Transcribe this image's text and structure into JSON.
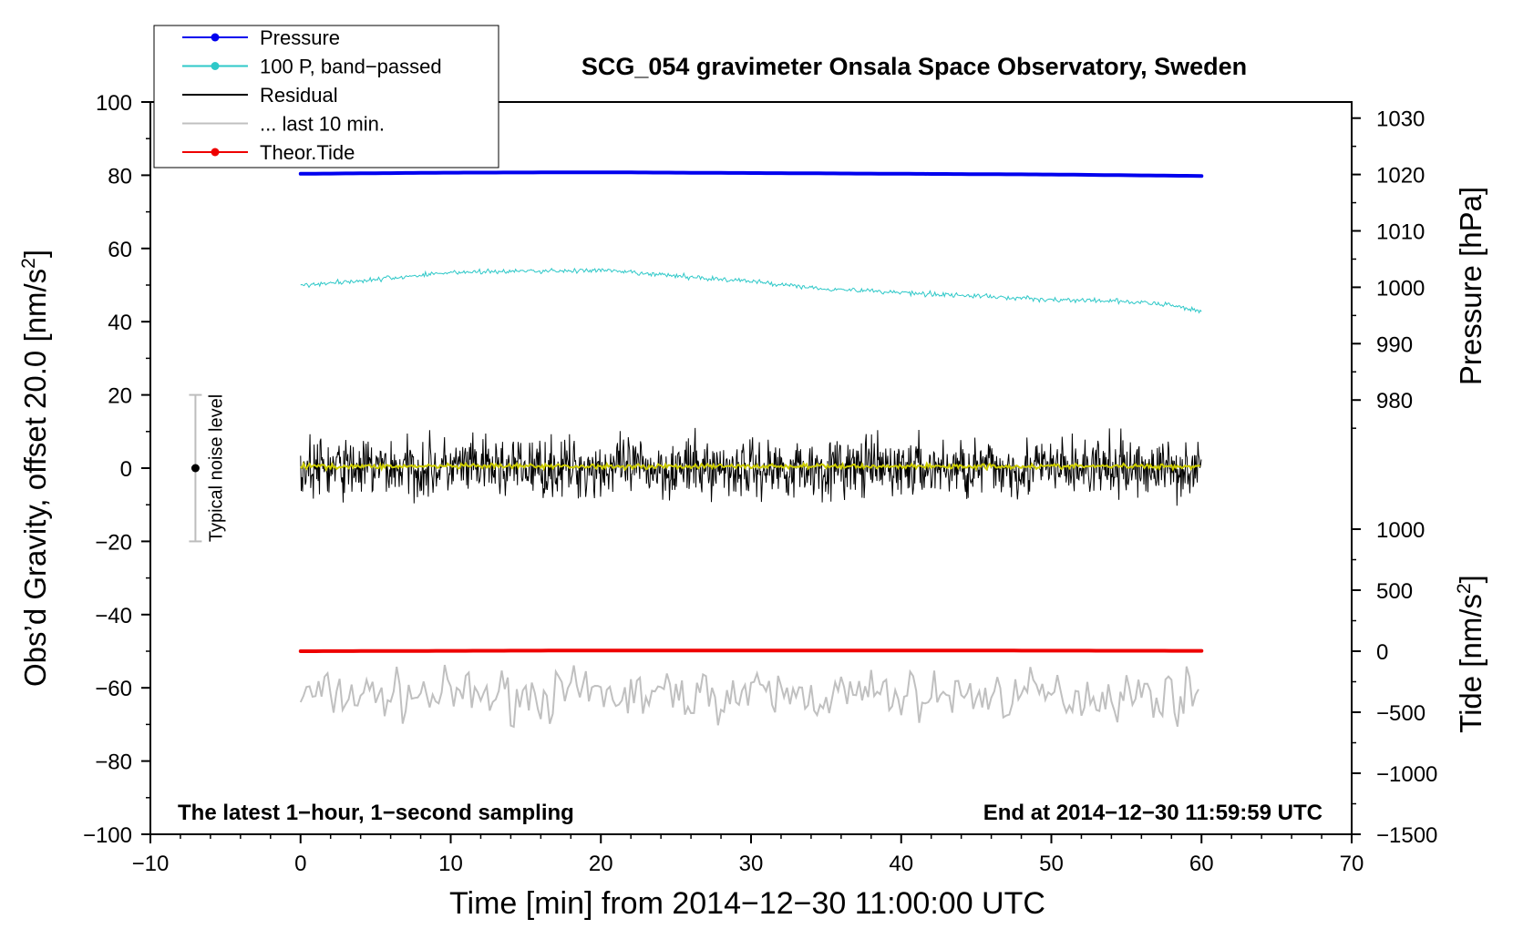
{
  "chart_data": {
    "type": "line",
    "title": "SCG_054 gravimeter Onsala Space Observatory, Sweden",
    "xlabel": "Time [min] from 2014−12−30 11:00:00 UTC",
    "ylabel_left_main": "Obs’d Gravity, offset 20.0 [nm/s",
    "ylabel_left_sup": "2",
    "ylabel_left_tail": "]",
    "ylabel_pressure": "Pressure [hPa]",
    "ylabel_tide_main": "Tide [nm/s",
    "ylabel_tide_sup": "2",
    "ylabel_tide_tail": "]",
    "xlim": [
      -10,
      70
    ],
    "ylim": [
      -100,
      100
    ],
    "x_ticks": [
      {
        "v": -10,
        "label": "−10"
      },
      {
        "v": 0,
        "label": "0"
      },
      {
        "v": 10,
        "label": "10"
      },
      {
        "v": 20,
        "label": "20"
      },
      {
        "v": 30,
        "label": "30"
      },
      {
        "v": 40,
        "label": "40"
      },
      {
        "v": 50,
        "label": "50"
      },
      {
        "v": 60,
        "label": "60"
      },
      {
        "v": 70,
        "label": "70"
      }
    ],
    "y_ticks_left": [
      {
        "v": 100,
        "label": "100"
      },
      {
        "v": 80,
        "label": "80"
      },
      {
        "v": 60,
        "label": "60"
      },
      {
        "v": 40,
        "label": "40"
      },
      {
        "v": 20,
        "label": "20"
      },
      {
        "v": 0,
        "label": "0"
      },
      {
        "v": -20,
        "label": "−20"
      },
      {
        "v": -40,
        "label": "−40"
      },
      {
        "v": -60,
        "label": "−60"
      },
      {
        "v": -80,
        "label": "−80"
      },
      {
        "v": -100,
        "label": "−100"
      }
    ],
    "pressure_axis": {
      "map": {
        "v1": 1020,
        "g1": 80.2,
        "v2": 1000,
        "g2": 49.4
      },
      "ticks": [
        {
          "v": 1030,
          "label": "1030"
        },
        {
          "v": 1020,
          "label": "1020"
        },
        {
          "v": 1010,
          "label": "1010"
        },
        {
          "v": 1000,
          "label": "1000"
        },
        {
          "v": 990,
          "label": "990"
        },
        {
          "v": 980,
          "label": "980"
        }
      ]
    },
    "tide_axis": {
      "map": {
        "v1": 0,
        "g1": -50,
        "v2": -1500,
        "g2": -100
      },
      "ticks": [
        {
          "v": 1000,
          "label": "1000"
        },
        {
          "v": 500,
          "label": "500"
        },
        {
          "v": 0,
          "label": "0"
        },
        {
          "v": -500,
          "label": "−500"
        },
        {
          "v": -1000,
          "label": "−1000"
        },
        {
          "v": -1500,
          "label": "−1500"
        }
      ]
    },
    "series": [
      {
        "name": "Pressure",
        "color": "#0000ee",
        "kind": "pressure",
        "points": [
          [
            0,
            80.4
          ],
          [
            10,
            80.7
          ],
          [
            20,
            80.8
          ],
          [
            30,
            80.6
          ],
          [
            40,
            80.4
          ],
          [
            50,
            80.2
          ],
          [
            60,
            79.8
          ]
        ]
      },
      {
        "name": "100 P, band−passed",
        "color": "#2ec8c8",
        "kind": "bandpassed",
        "points": [
          [
            0,
            50
          ],
          [
            5,
            51.5
          ],
          [
            10,
            53.5
          ],
          [
            15,
            53.8
          ],
          [
            20,
            54
          ],
          [
            25,
            52.5
          ],
          [
            30,
            51
          ],
          [
            35,
            49
          ],
          [
            40,
            48
          ],
          [
            45,
            47
          ],
          [
            50,
            46
          ],
          [
            55,
            45.5
          ],
          [
            58,
            44.5
          ],
          [
            60,
            42.8
          ]
        ],
        "noise": 1.0
      },
      {
        "name": "Residual",
        "color": "#000000",
        "kind": "residual",
        "points": [
          [
            0,
            0
          ],
          [
            60,
            0
          ]
        ],
        "noise_range": 12
      },
      {
        "name": "... last 10 min.",
        "color": "#c0c0c0",
        "kind": "residual10",
        "points": [
          [
            0,
            -62
          ],
          [
            60,
            -62
          ]
        ],
        "noise_range": 10
      },
      {
        "name": "Theor.Tide",
        "color": "#ee0000",
        "kind": "tide",
        "points": [
          [
            0,
            -50
          ],
          [
            20,
            -49.8
          ],
          [
            40,
            -49.8
          ],
          [
            60,
            -49.9
          ]
        ]
      },
      {
        "name": "smoothed residual",
        "color": "#cccc00",
        "kind": "smooth",
        "points": [
          [
            0,
            0.5
          ],
          [
            60,
            0.5
          ]
        ],
        "noise_range": 1
      }
    ],
    "legend": [
      {
        "label": "Pressure",
        "color": "#0000ee",
        "marker": true
      },
      {
        "label": "100 P, band−passed",
        "color": "#2ec8c8",
        "marker": true
      },
      {
        "label": "Residual",
        "color": "#000000",
        "marker": false
      },
      {
        "label": "... last 10 min.",
        "color": "#c0c0c0",
        "marker": false
      },
      {
        "label": "Theor.Tide",
        "color": "#ee0000",
        "marker": true
      }
    ],
    "legend_position": "top-left",
    "noise_bar": {
      "x": -7,
      "y": 0,
      "half": 20,
      "label": "Typical noise level"
    },
    "annotation_left": "The latest 1−hour, 1−second sampling",
    "annotation_right": "End at 2014−12−30 11:59:59 UTC"
  }
}
